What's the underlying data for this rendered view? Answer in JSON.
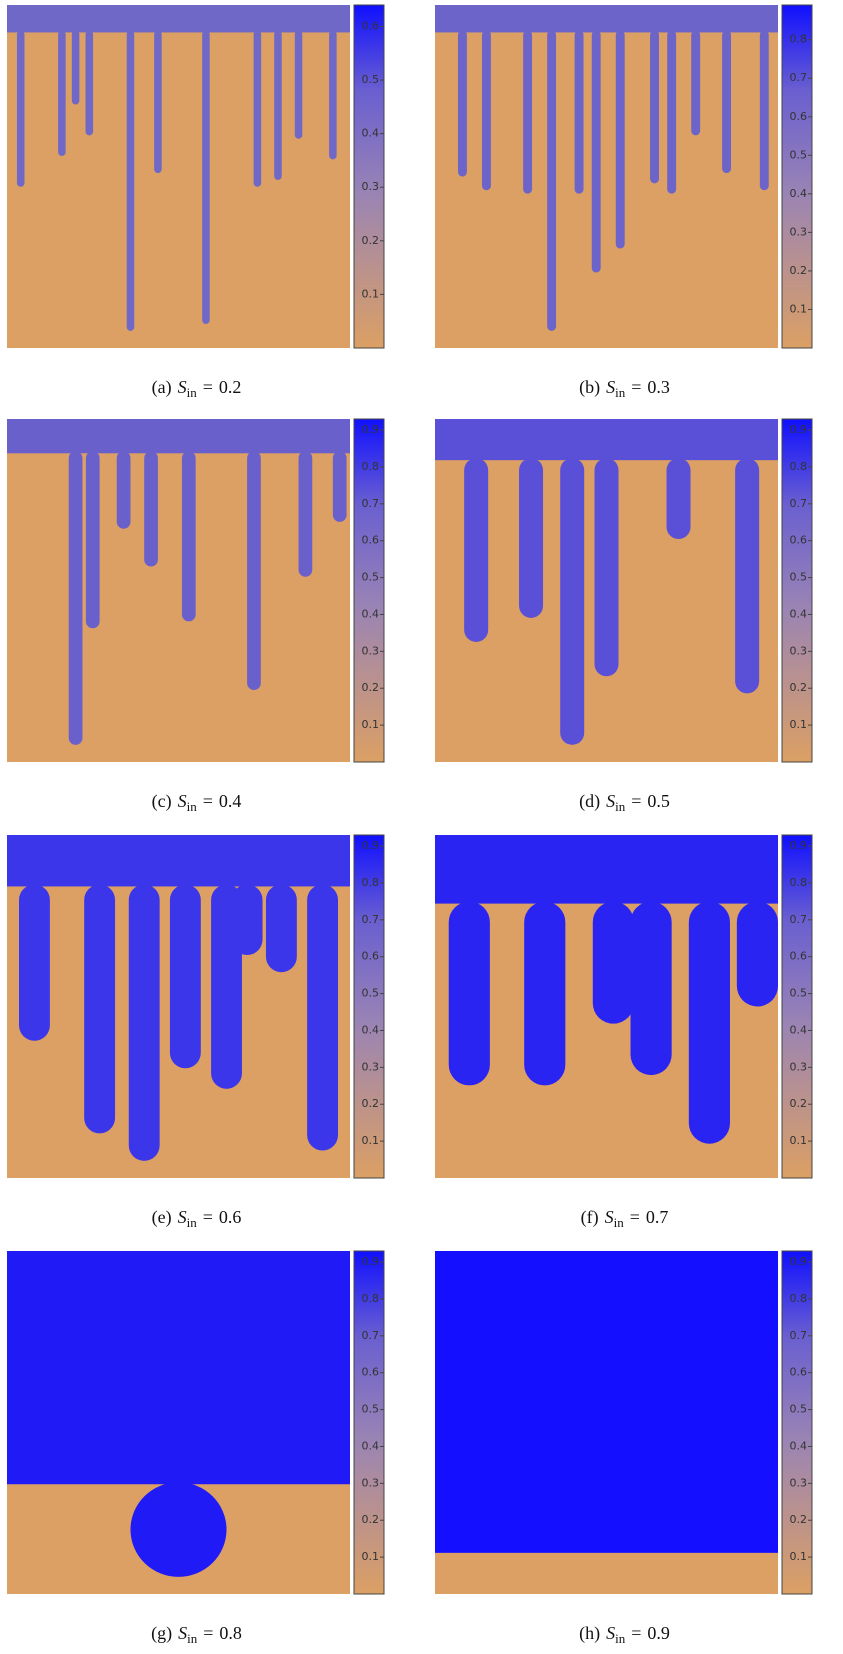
{
  "parameter": {
    "symbol": "S",
    "subscript": "in",
    "relation": "="
  },
  "panels": [
    {
      "label": "(a)",
      "value": 0.2,
      "colorbar": {
        "clim": [
          0,
          0.64
        ],
        "ticks": [
          0.1,
          0.2,
          0.3,
          0.4,
          0.5,
          0.6
        ]
      }
    },
    {
      "label": "(b)",
      "value": 0.3,
      "colorbar": {
        "clim": [
          0,
          0.89
        ],
        "ticks": [
          0.1,
          0.2,
          0.3,
          0.4,
          0.5,
          0.6,
          0.7,
          0.8
        ]
      }
    },
    {
      "label": "(c)",
      "value": 0.4,
      "colorbar": {
        "clim": [
          0,
          0.93
        ],
        "ticks": [
          0.1,
          0.2,
          0.3,
          0.4,
          0.5,
          0.6,
          0.7,
          0.8,
          0.9
        ]
      }
    },
    {
      "label": "(d)",
      "value": 0.5,
      "colorbar": {
        "clim": [
          0,
          0.93
        ],
        "ticks": [
          0.1,
          0.2,
          0.3,
          0.4,
          0.5,
          0.6,
          0.7,
          0.8,
          0.9
        ]
      }
    },
    {
      "label": "(e)",
      "value": 0.6,
      "colorbar": {
        "clim": [
          0,
          0.93
        ],
        "ticks": [
          0.1,
          0.2,
          0.3,
          0.4,
          0.5,
          0.6,
          0.7,
          0.8,
          0.9
        ]
      }
    },
    {
      "label": "(f)",
      "value": 0.7,
      "colorbar": {
        "clim": [
          0,
          0.93
        ],
        "ticks": [
          0.1,
          0.2,
          0.3,
          0.4,
          0.5,
          0.6,
          0.7,
          0.8,
          0.9
        ]
      }
    },
    {
      "label": "(g)",
      "value": 0.8,
      "colorbar": {
        "clim": [
          0,
          0.93
        ],
        "ticks": [
          0.1,
          0.2,
          0.3,
          0.4,
          0.5,
          0.6,
          0.7,
          0.8,
          0.9
        ]
      }
    },
    {
      "label": "(h)",
      "value": 0.9,
      "colorbar": {
        "clim": [
          0,
          0.93
        ],
        "ticks": [
          0.1,
          0.2,
          0.3,
          0.4,
          0.5,
          0.6,
          0.7,
          0.8,
          0.9
        ]
      }
    }
  ]
}
